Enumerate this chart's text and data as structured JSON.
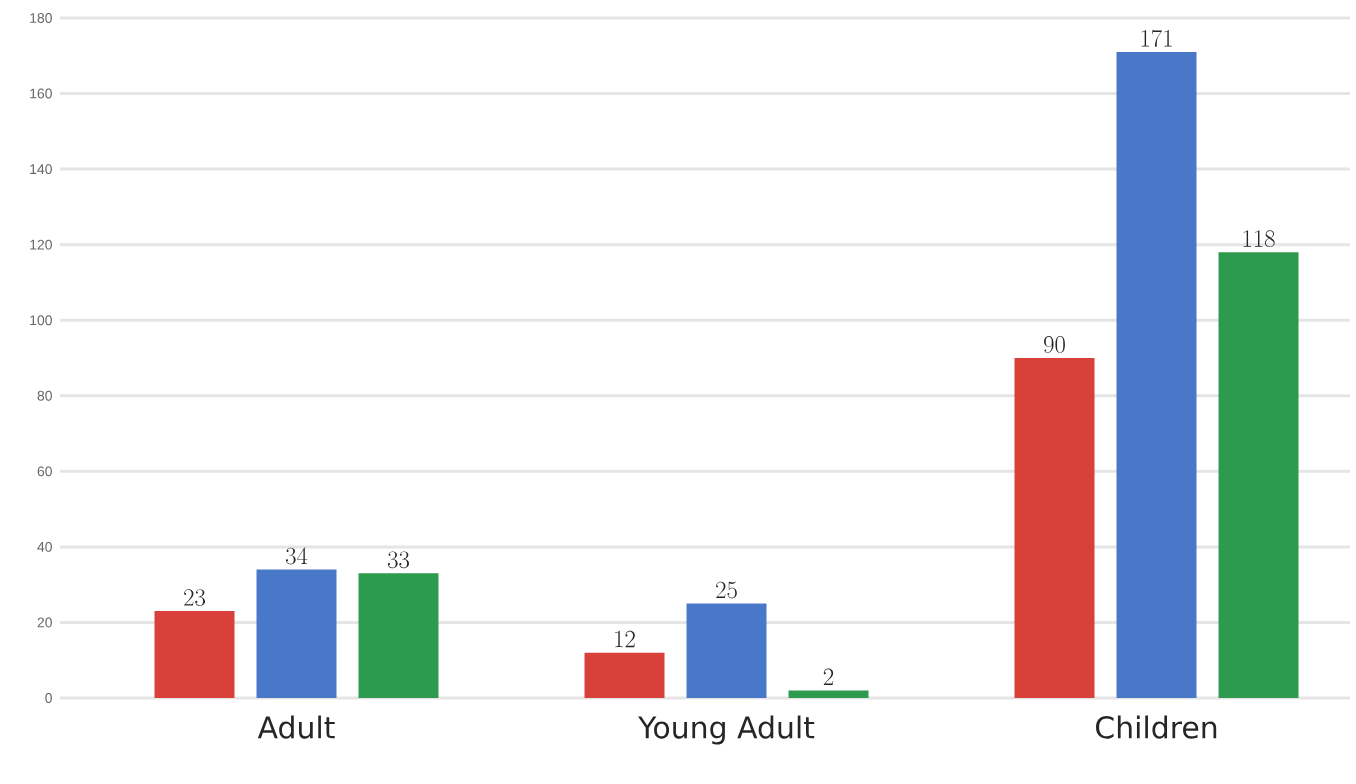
{
  "chart_data": {
    "type": "bar",
    "categories": [
      "Adult",
      "Young Adult",
      "Children"
    ],
    "series": [
      {
        "color": "#d9403a",
        "values": [
          23,
          12,
          90
        ]
      },
      {
        "color": "#4a78c8",
        "values": [
          34,
          25,
          171
        ]
      },
      {
        "color": "#2e9a4e",
        "values": [
          33,
          2,
          118
        ]
      }
    ],
    "ylim": [
      0,
      180
    ],
    "yticks": [
      0,
      20,
      40,
      60,
      80,
      100,
      120,
      140,
      160,
      180
    ],
    "grid": "y",
    "data_labels": true
  }
}
